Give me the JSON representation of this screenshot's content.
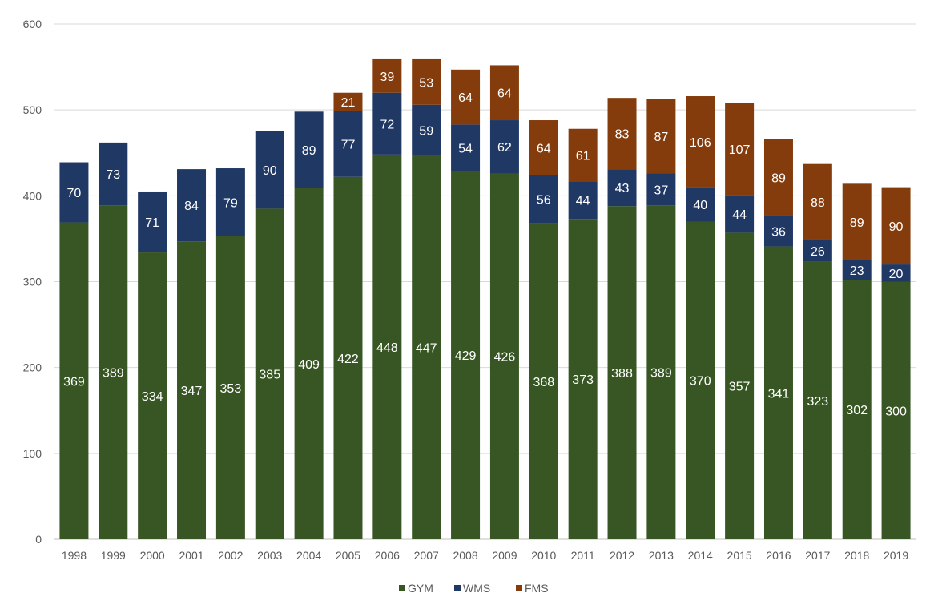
{
  "chart_data": {
    "type": "bar",
    "stacked": true,
    "categories": [
      "1998",
      "1999",
      "2000",
      "2001",
      "2002",
      "2003",
      "2004",
      "2005",
      "2006",
      "2007",
      "2008",
      "2009",
      "2010",
      "2011",
      "2012",
      "2013",
      "2014",
      "2015",
      "2016",
      "2017",
      "2018",
      "2019"
    ],
    "series": [
      {
        "name": "GYM",
        "color": "#375623",
        "values": [
          369,
          389,
          334,
          347,
          353,
          385,
          409,
          422,
          448,
          447,
          429,
          426,
          368,
          373,
          388,
          389,
          370,
          357,
          341,
          323,
          302,
          300
        ]
      },
      {
        "name": "WMS",
        "color": "#203864",
        "values": [
          70,
          73,
          71,
          84,
          79,
          90,
          89,
          77,
          72,
          59,
          54,
          62,
          56,
          44,
          43,
          37,
          40,
          44,
          36,
          26,
          23,
          20
        ]
      },
      {
        "name": "FMS",
        "color": "#843C0C",
        "values": [
          0,
          0,
          0,
          0,
          0,
          0,
          0,
          21,
          39,
          53,
          64,
          64,
          64,
          61,
          83,
          87,
          106,
          107,
          89,
          88,
          89,
          90
        ]
      }
    ],
    "ylim": [
      0,
      600
    ],
    "yticks": [
      0,
      100,
      200,
      300,
      400,
      500,
      600
    ],
    "grid": true,
    "legend_position": "bottom",
    "title": "",
    "xlabel": "",
    "ylabel": ""
  }
}
